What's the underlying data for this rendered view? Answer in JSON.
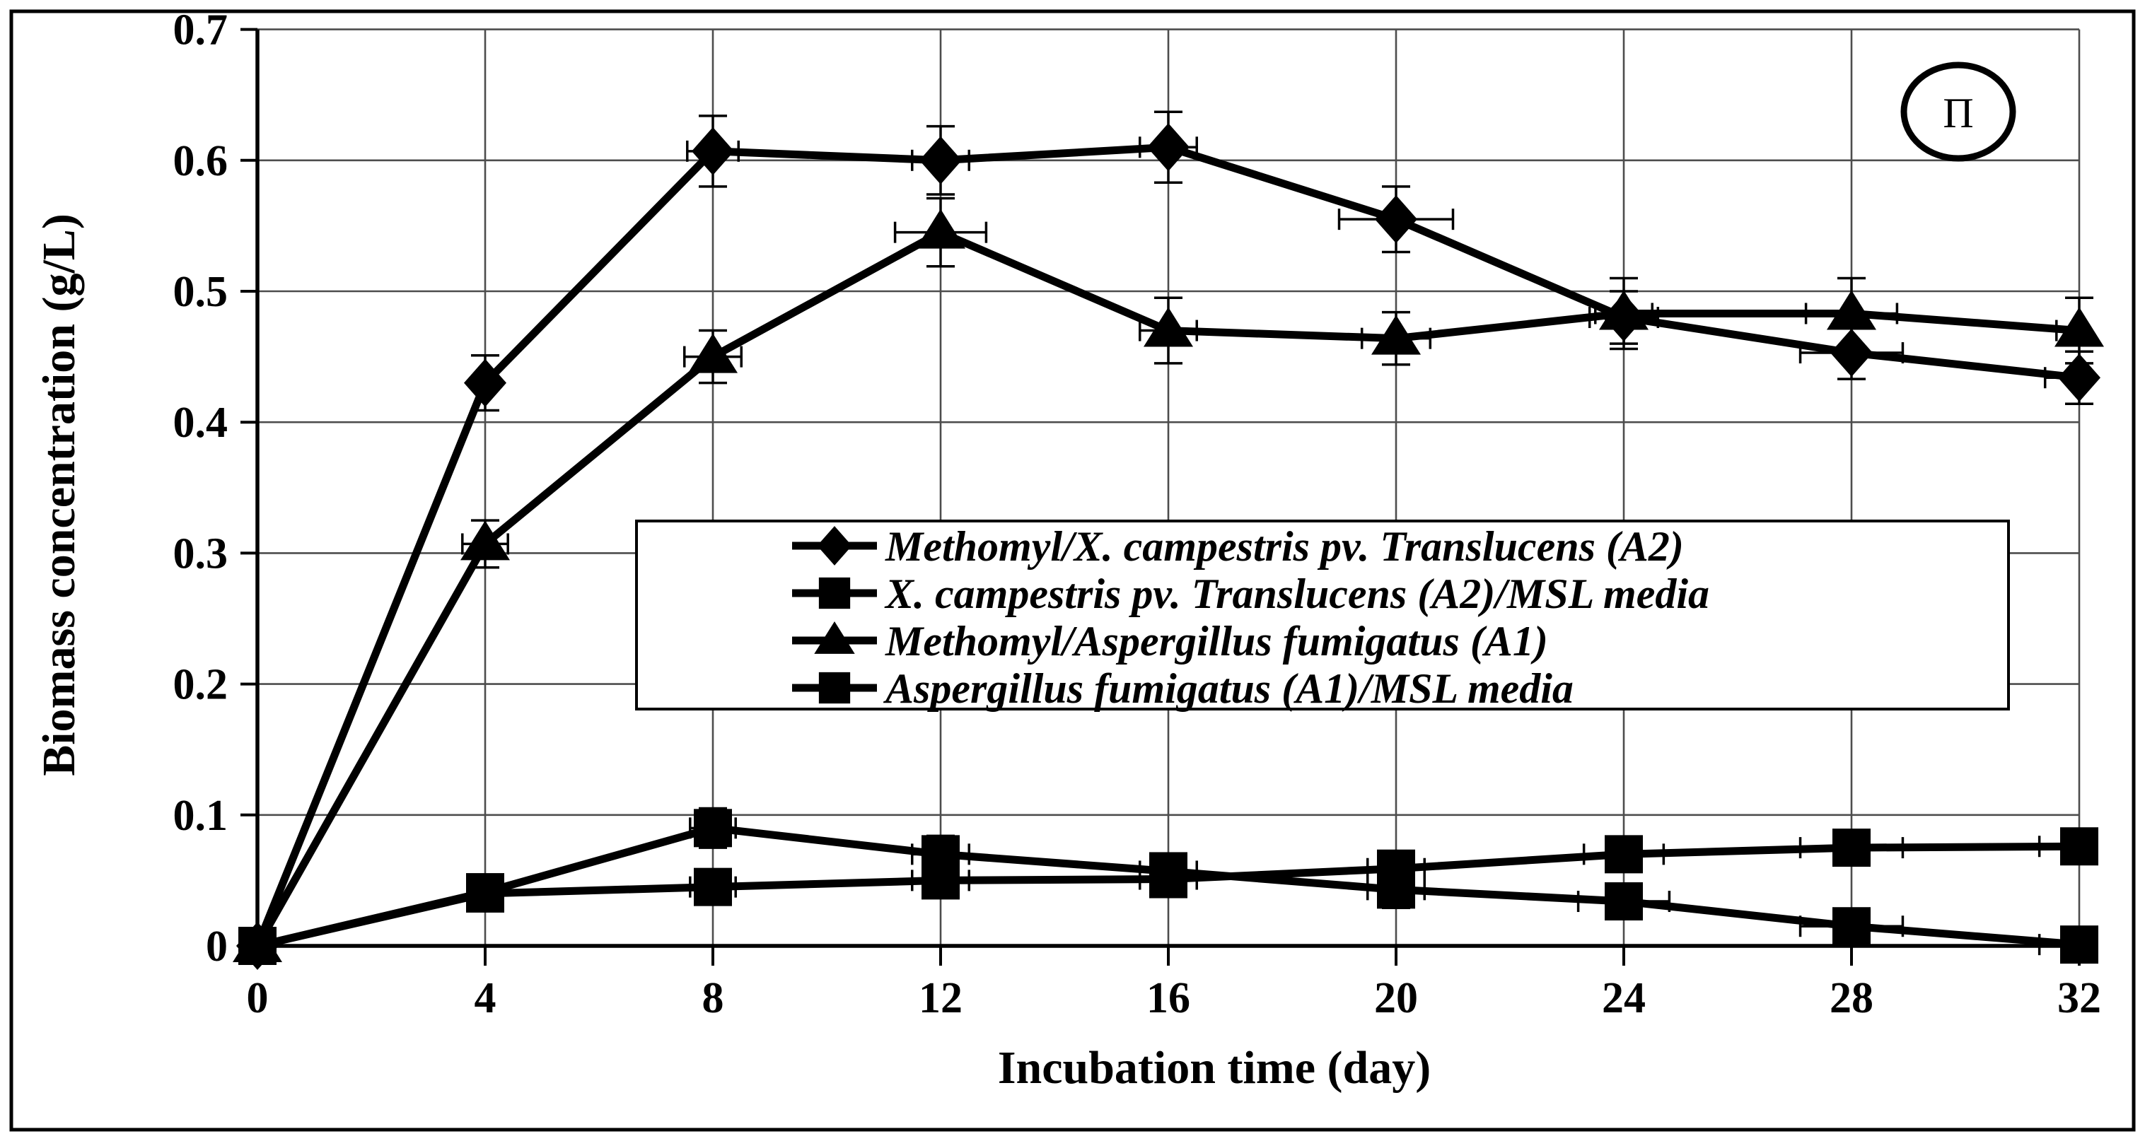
{
  "figure": {
    "badge_text": "Π"
  },
  "chart_data": {
    "type": "line",
    "title": "",
    "xlabel": "Incubation time (day)",
    "ylabel": "Biomass concentration (g/L)",
    "xlim": [
      0,
      32
    ],
    "ylim": [
      0,
      0.7
    ],
    "grid": true,
    "legend_position": "center-overlay",
    "x": [
      0,
      4,
      8,
      12,
      16,
      20,
      24,
      28,
      32
    ],
    "x_tick_labels": [
      "0",
      "4",
      "8",
      "12",
      "16",
      "20",
      "24",
      "28",
      "32"
    ],
    "y_ticks": [
      0.7,
      0.6,
      0.5,
      0.4,
      0.3,
      0.2,
      0.1,
      0
    ],
    "y_tick_labels": [
      "0.7",
      "0.6",
      "0.5",
      "0.4",
      "0.3",
      "0.2",
      "0.1",
      "0"
    ],
    "colors": {
      "line": "#000000",
      "grid": "#4d4d4d",
      "background": "#ffffff"
    },
    "series": [
      {
        "name": "Methomyl/X. campestris pv. Translucens (A2)",
        "marker": "diamond",
        "values": [
          0,
          0.43,
          0.607,
          0.6,
          0.61,
          0.555,
          0.48,
          0.453,
          0.434
        ],
        "yerr": [
          0,
          0.021,
          0.027,
          0.026,
          0.027,
          0.025,
          0.02,
          0.02,
          0.02
        ],
        "xerr": [
          0,
          0,
          0.45,
          0.5,
          0.5,
          1.0,
          0.6,
          0.9,
          0.6
        ]
      },
      {
        "name": "X. campestris pv. Translucens (A2)/MSL media",
        "marker": "square",
        "values": [
          0,
          0.041,
          0.09,
          0.07,
          0.057,
          0.043,
          0.034,
          0.015,
          0.001
        ],
        "yerr": [
          0,
          0,
          0.015,
          0.014,
          0.012,
          0.014,
          0.012,
          0.012,
          0.01
        ],
        "xerr": [
          0,
          0,
          0.4,
          0.5,
          0.5,
          0.5,
          0.8,
          0.9,
          0.7
        ]
      },
      {
        "name": "Methomyl/Aspergillus fumigatus (A1)",
        "marker": "triangle",
        "values": [
          0,
          0.307,
          0.45,
          0.545,
          0.47,
          0.464,
          0.483,
          0.483,
          0.47
        ],
        "yerr": [
          0,
          0.018,
          0.02,
          0.026,
          0.025,
          0.02,
          0.027,
          0.027,
          0.025
        ],
        "xerr": [
          0,
          0.4,
          0.5,
          0.8,
          0.5,
          0.6,
          0.5,
          0.8,
          0.4
        ]
      },
      {
        "name": "Aspergillus fumigatus (A1)/MSL media",
        "marker": "square",
        "values": [
          0,
          0.04,
          0.045,
          0.05,
          0.051,
          0.059,
          0.07,
          0.075,
          0.076
        ],
        "yerr": [
          0,
          0,
          0.01,
          0.012,
          0.012,
          0.012,
          0.012,
          0.012,
          0.012
        ],
        "xerr": [
          0,
          0,
          0.4,
          0.5,
          0.5,
          0.5,
          0.7,
          0.9,
          0.7
        ]
      }
    ]
  }
}
